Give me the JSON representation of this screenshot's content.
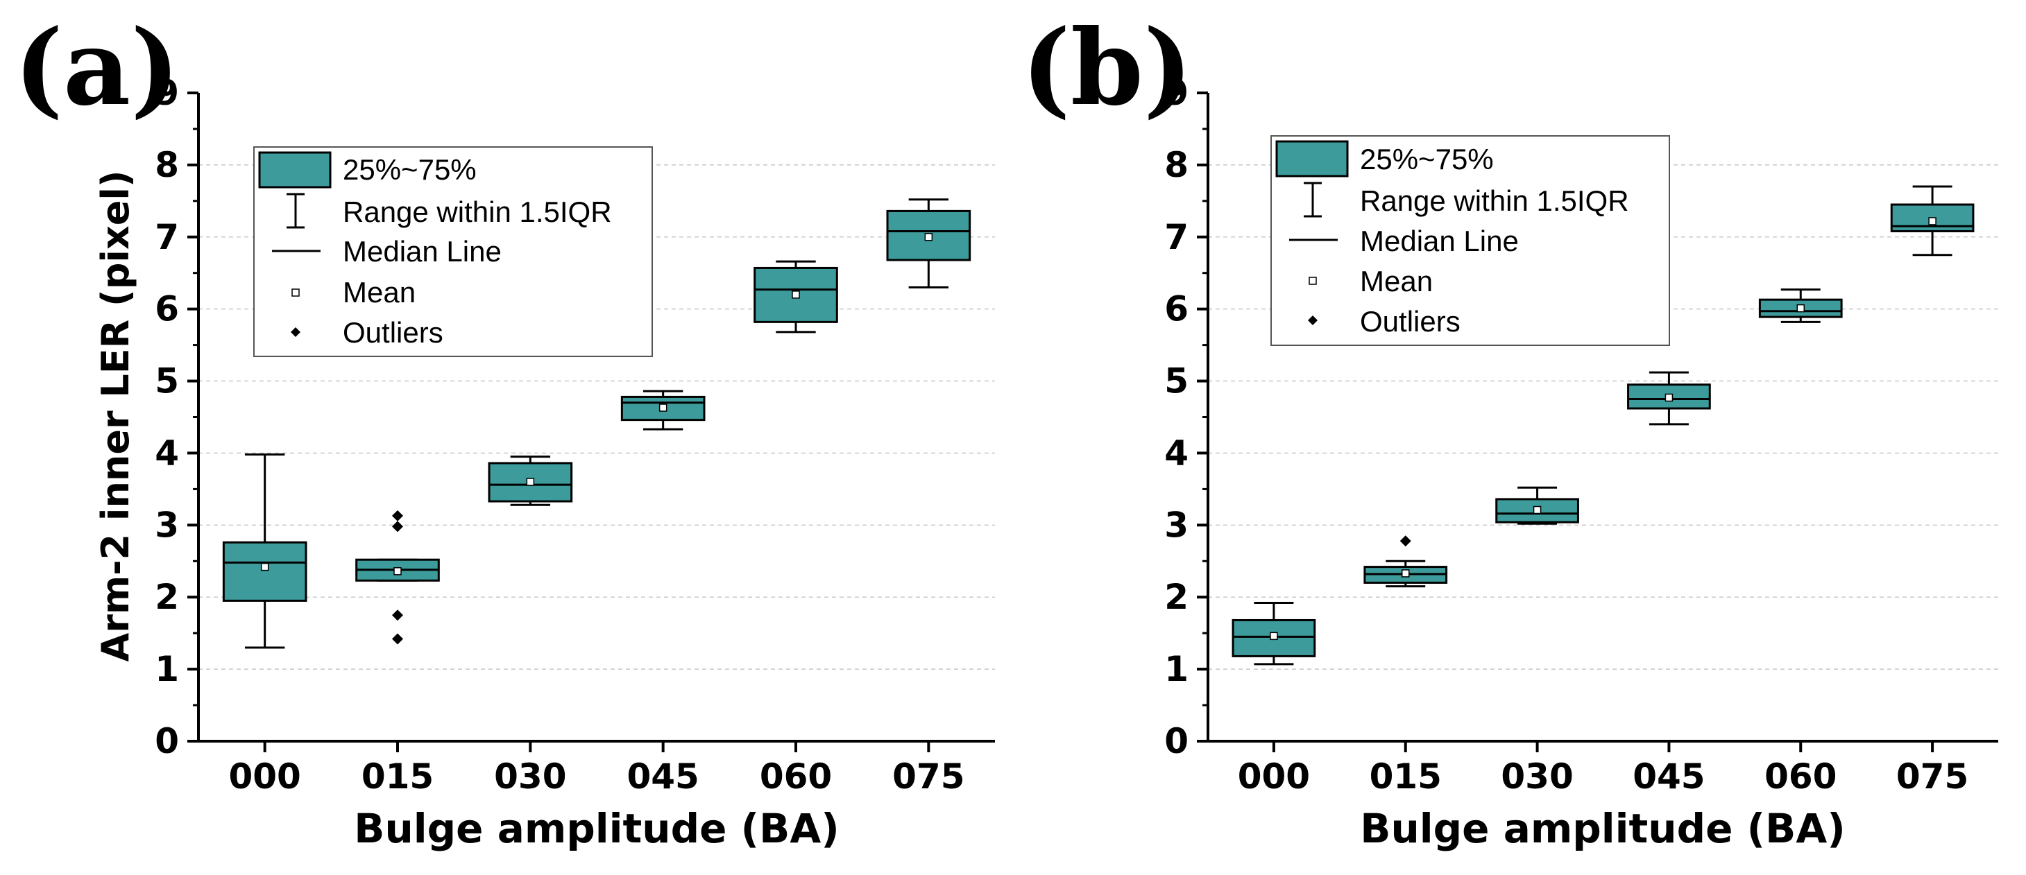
{
  "chart_data": [
    {
      "type": "box",
      "panel_label": "(a)",
      "ylabel": "Arm-2 inner LER (pixel)",
      "xlabel": "Bulge amplitude (BA)",
      "ylim": [
        0,
        9
      ],
      "yticks": [
        "0",
        "1",
        "2",
        "3",
        "4",
        "5",
        "6",
        "7",
        "8",
        "9"
      ],
      "grid": "horizontal dashed",
      "legend_position": "top-left",
      "legend": {
        "box": "25%~75%",
        "whisker": "Range within 1.5IQR",
        "median": "Median Line",
        "mean": "Mean",
        "outliers": "Outliers"
      },
      "box_color": "#3d9b9b",
      "categories": [
        "000",
        "015",
        "030",
        "045",
        "060",
        "075"
      ],
      "boxes": [
        {
          "category": "000",
          "whisker_low": 1.3,
          "q1": 1.95,
          "median": 2.48,
          "q3": 2.76,
          "whisker_high": 3.98,
          "mean": 2.42,
          "outliers": []
        },
        {
          "category": "015",
          "whisker_low": 2.23,
          "q1": 2.23,
          "median": 2.38,
          "q3": 2.52,
          "whisker_high": 2.52,
          "mean": 2.36,
          "outliers": [
            1.42,
            1.75,
            2.98,
            3.13
          ]
        },
        {
          "category": "030",
          "whisker_low": 3.28,
          "q1": 3.33,
          "median": 3.56,
          "q3": 3.86,
          "whisker_high": 3.95,
          "mean": 3.6,
          "outliers": []
        },
        {
          "category": "045",
          "whisker_low": 4.33,
          "q1": 4.46,
          "median": 4.7,
          "q3": 4.78,
          "whisker_high": 4.86,
          "mean": 4.63,
          "outliers": []
        },
        {
          "category": "060",
          "whisker_low": 5.68,
          "q1": 5.82,
          "median": 6.27,
          "q3": 6.57,
          "whisker_high": 6.66,
          "mean": 6.2,
          "outliers": []
        },
        {
          "category": "075",
          "whisker_low": 6.3,
          "q1": 6.68,
          "median": 7.08,
          "q3": 7.36,
          "whisker_high": 7.52,
          "mean": 7.0,
          "outliers": []
        }
      ]
    },
    {
      "type": "box",
      "panel_label": "(b)",
      "ylabel": "",
      "xlabel": "Bulge amplitude (BA)",
      "ylim": [
        0,
        9
      ],
      "yticks": [
        "0",
        "1",
        "2",
        "3",
        "4",
        "5",
        "6",
        "7",
        "8",
        "9"
      ],
      "grid": "horizontal dashed",
      "legend_position": "top-left",
      "legend": {
        "box": "25%~75%",
        "whisker": "Range within 1.5IQR",
        "median": "Median Line",
        "mean": "Mean",
        "outliers": "Outliers"
      },
      "box_color": "#3d9b9b",
      "categories": [
        "000",
        "015",
        "030",
        "045",
        "060",
        "075"
      ],
      "boxes": [
        {
          "category": "000",
          "whisker_low": 1.07,
          "q1": 1.18,
          "median": 1.45,
          "q3": 1.68,
          "whisker_high": 1.92,
          "mean": 1.46,
          "outliers": []
        },
        {
          "category": "015",
          "whisker_low": 2.15,
          "q1": 2.2,
          "median": 2.32,
          "q3": 2.42,
          "whisker_high": 2.5,
          "mean": 2.33,
          "outliers": [
            2.78
          ]
        },
        {
          "category": "030",
          "whisker_low": 3.02,
          "q1": 3.04,
          "median": 3.16,
          "q3": 3.36,
          "whisker_high": 3.52,
          "mean": 3.21,
          "outliers": []
        },
        {
          "category": "045",
          "whisker_low": 4.4,
          "q1": 4.62,
          "median": 4.75,
          "q3": 4.95,
          "whisker_high": 5.12,
          "mean": 4.77,
          "outliers": []
        },
        {
          "category": "060",
          "whisker_low": 5.82,
          "q1": 5.89,
          "median": 5.97,
          "q3": 6.13,
          "whisker_high": 6.27,
          "mean": 6.01,
          "outliers": []
        },
        {
          "category": "075",
          "whisker_low": 6.75,
          "q1": 7.08,
          "median": 7.15,
          "q3": 7.45,
          "whisker_high": 7.7,
          "mean": 7.22,
          "outliers": []
        }
      ]
    }
  ]
}
